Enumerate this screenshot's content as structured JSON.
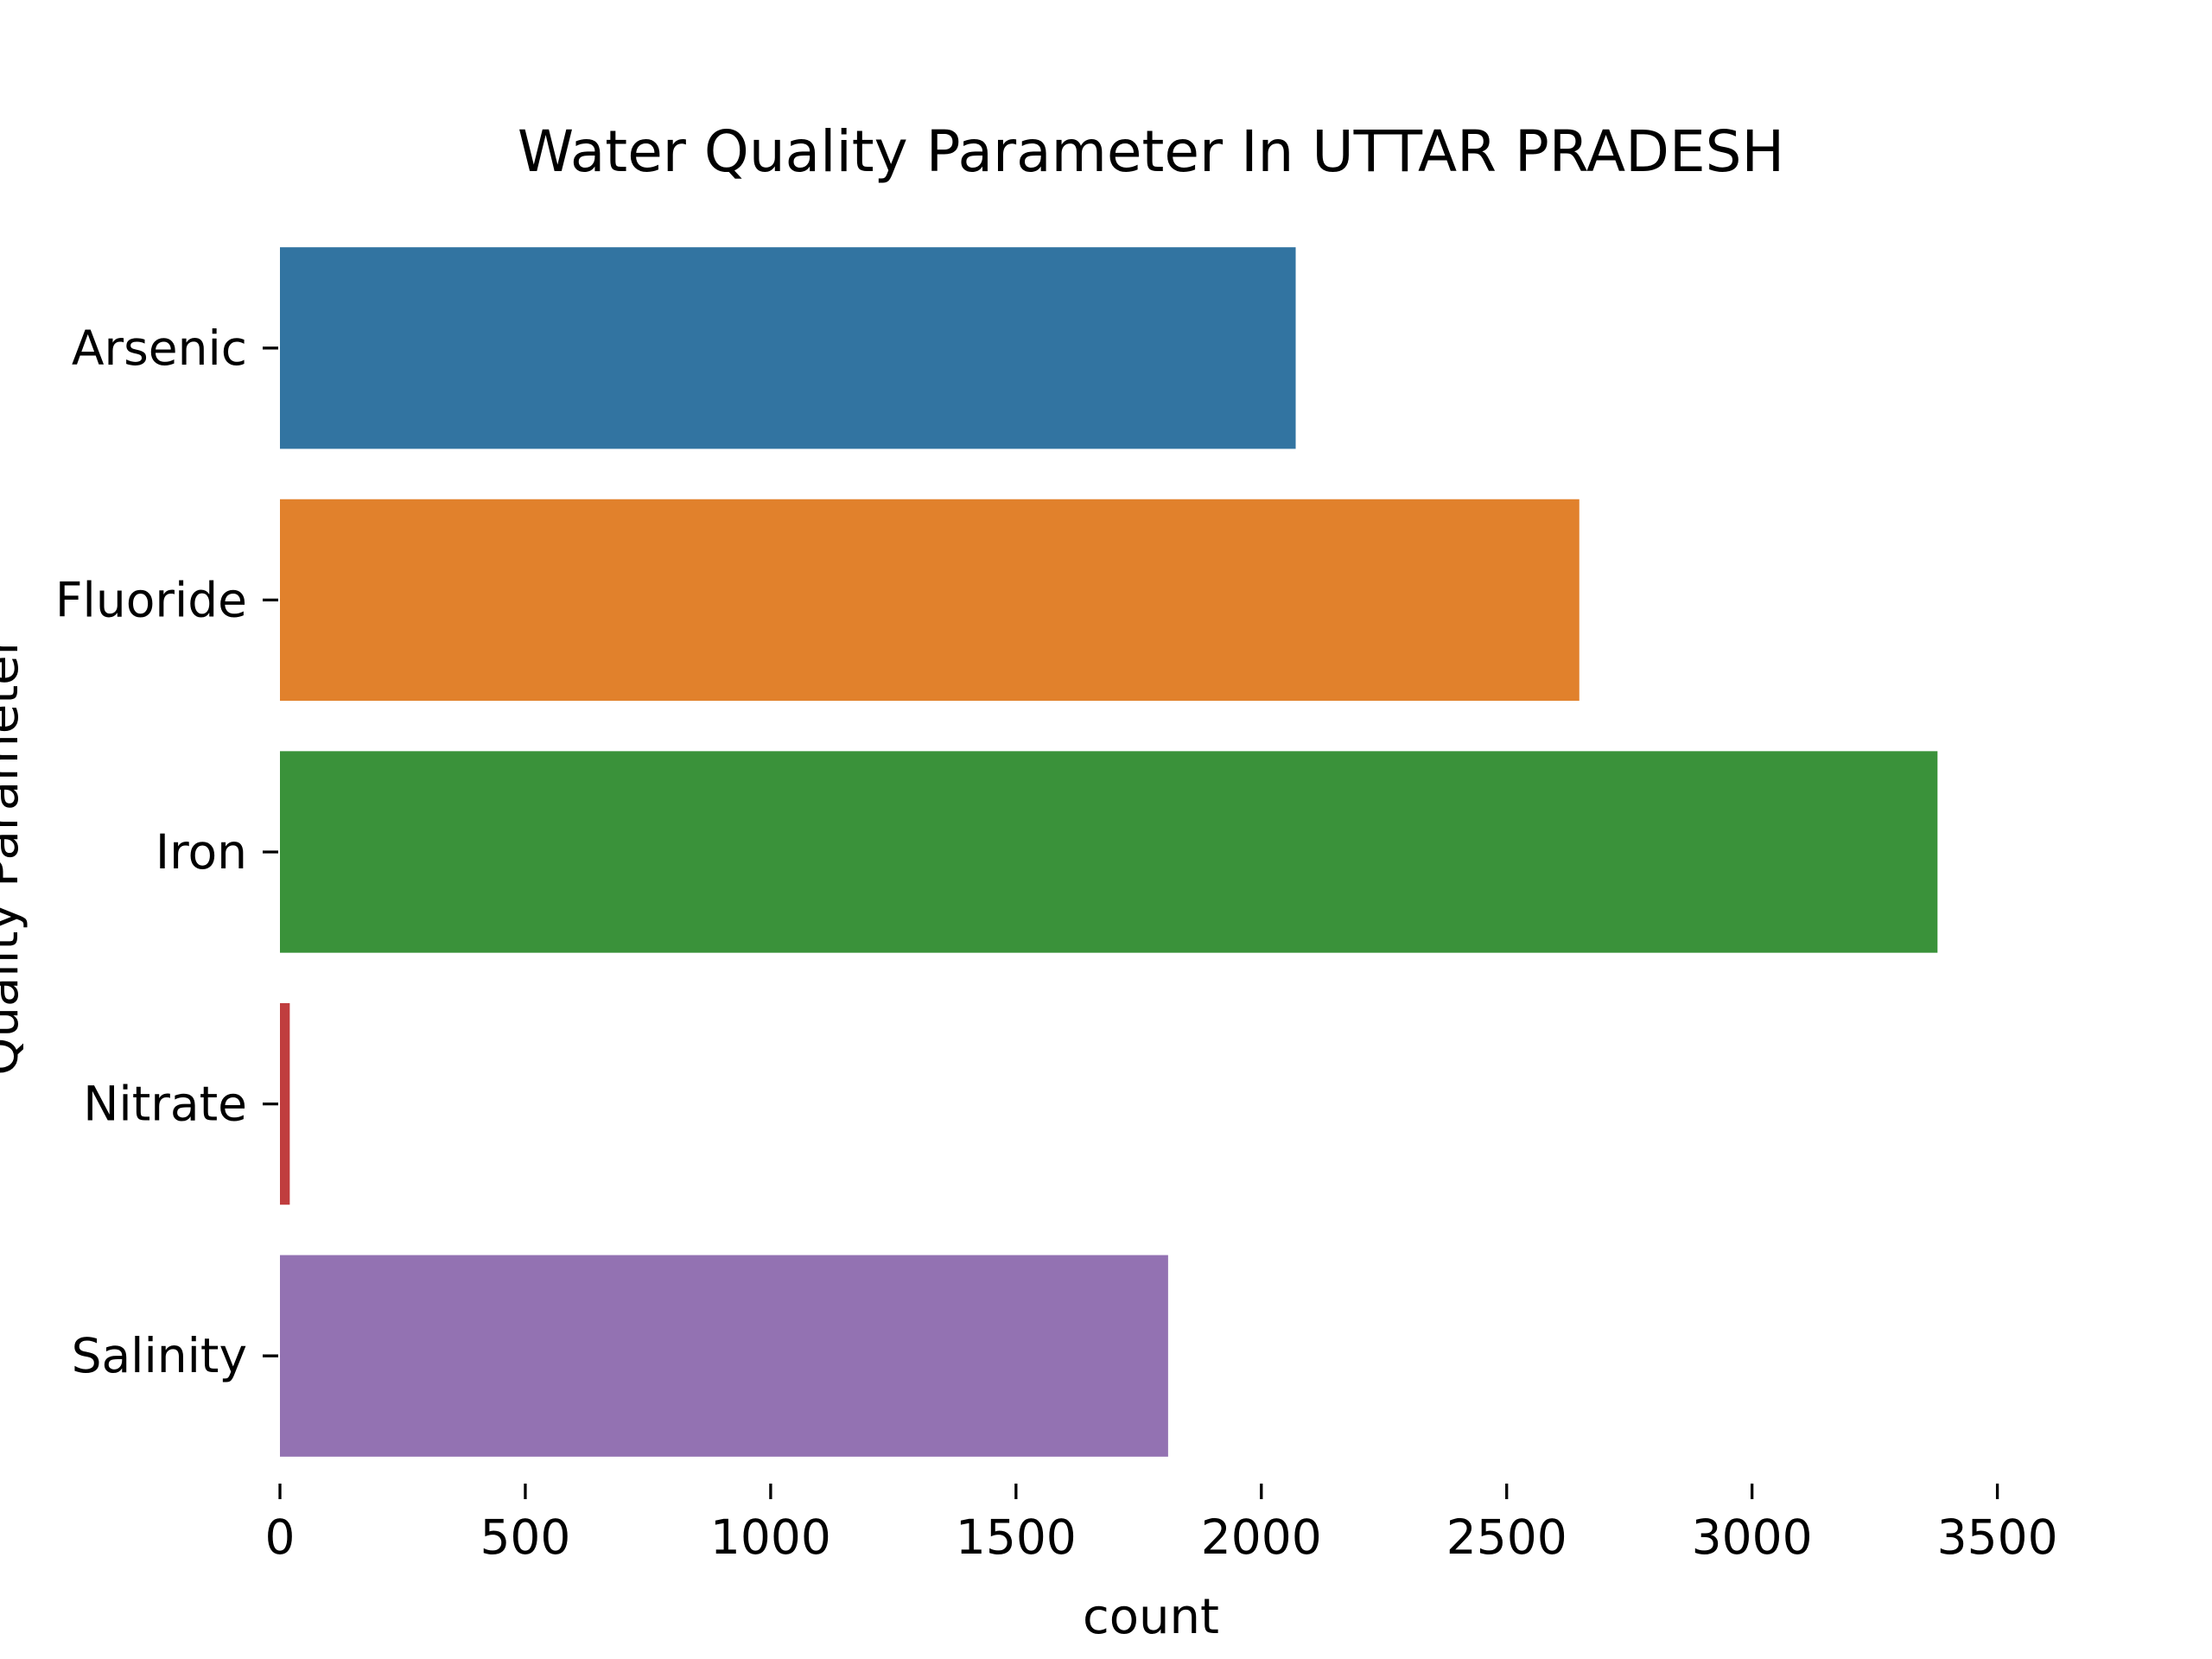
{
  "chart_data": {
    "type": "bar",
    "orientation": "horizontal",
    "title": "Water Quality Parameter In UTTAR PRADESH",
    "xlabel": "count",
    "ylabel": "Quality Parameter",
    "categories": [
      "Arsenic",
      "Fluoride",
      "Iron",
      "Nitrate",
      "Salinity"
    ],
    "values": [
      2070,
      2648,
      3378,
      20,
      1810
    ],
    "colors": [
      "#3274a1",
      "#e1812c",
      "#3a923a",
      "#c03d3e",
      "#9372b2"
    ],
    "xlim": [
      0,
      3550
    ],
    "xticks": [
      0,
      500,
      1000,
      1500,
      2000,
      2500,
      3000,
      3500
    ],
    "grid": false,
    "legend": "none"
  }
}
